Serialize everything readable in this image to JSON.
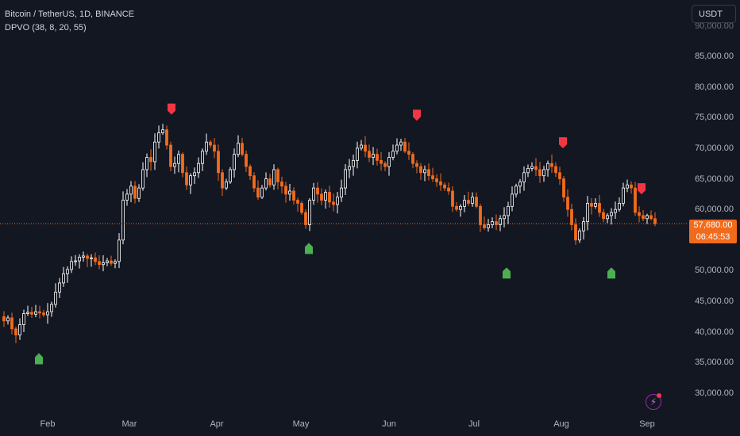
{
  "legend": {
    "symbol": "Bitcoin / TetherUS, 1D, BINANCE",
    "indicator": "DPVO (38, 8, 20, 55)"
  },
  "currency_button": "USDT",
  "price_axis": {
    "ticks": [
      "85,000.00",
      "80,000.00",
      "75,000.00",
      "70,000.00",
      "65,000.00",
      "60,000.00",
      "50,000.00",
      "45,000.00",
      "40,000.00",
      "35,000.00",
      "30,000.00"
    ],
    "top_partial_tick": "90,000.00",
    "bottom_partial_tick": "55,000.00"
  },
  "time_axis": {
    "ticks": [
      "Feb",
      "Mar",
      "Apr",
      "May",
      "Jun",
      "Jul",
      "Aug",
      "Sep"
    ]
  },
  "last_price": {
    "value": "57,680.00",
    "countdown": "06:45:53"
  },
  "colors": {
    "background": "#131722",
    "up_candle": "#ffffff",
    "down_candle": "#f26b1d",
    "sell_signal": "#f23645",
    "buy_signal": "#4caf50",
    "price_line": "#f26b1d"
  },
  "chart_data": {
    "type": "candlestick",
    "symbol": "Bitcoin / TetherUS",
    "interval": "1D",
    "exchange": "BINANCE",
    "x_ticks": [
      "Feb",
      "Mar",
      "Apr",
      "May",
      "Jun",
      "Jul",
      "Aug",
      "Sep"
    ],
    "y_ticks": [
      30000,
      35000,
      40000,
      45000,
      50000,
      55000,
      60000,
      65000,
      70000,
      75000,
      80000,
      85000,
      90000
    ],
    "ylim": [
      27500,
      93500
    ],
    "approx_closes": [
      [
        0,
        42500
      ],
      [
        5,
        41800
      ],
      [
        10,
        42300
      ],
      [
        15,
        40500
      ],
      [
        20,
        39500
      ],
      [
        25,
        41200
      ],
      [
        30,
        43000
      ],
      [
        35,
        43200
      ],
      [
        40,
        42900
      ],
      [
        45,
        43300
      ],
      [
        50,
        43100
      ],
      [
        55,
        42800
      ],
      [
        60,
        43300
      ],
      [
        65,
        44500
      ],
      [
        70,
        46500
      ],
      [
        75,
        48000
      ],
      [
        80,
        49500
      ],
      [
        85,
        50200
      ],
      [
        90,
        51500
      ],
      [
        95,
        51600
      ],
      [
        100,
        52200
      ],
      [
        105,
        52400
      ],
      [
        110,
        52000
      ],
      [
        115,
        52100
      ],
      [
        120,
        51500
      ],
      [
        125,
        51000
      ],
      [
        130,
        51300
      ],
      [
        135,
        51600
      ],
      [
        140,
        51200
      ],
      [
        145,
        51500
      ],
      [
        150,
        55000
      ],
      [
        155,
        61500
      ],
      [
        160,
        62500
      ],
      [
        165,
        63800
      ],
      [
        170,
        61800
      ],
      [
        175,
        63500
      ],
      [
        180,
        66500
      ],
      [
        185,
        68500
      ],
      [
        190,
        67800
      ],
      [
        195,
        71000
      ],
      [
        200,
        72500
      ],
      [
        205,
        73000
      ],
      [
        210,
        70500
      ],
      [
        215,
        67000
      ],
      [
        220,
        67500
      ],
      [
        225,
        69000
      ],
      [
        230,
        66000
      ],
      [
        235,
        64000
      ],
      [
        240,
        65500
      ],
      [
        245,
        66000
      ],
      [
        250,
        67500
      ],
      [
        255,
        69500
      ],
      [
        260,
        71000
      ],
      [
        265,
        70500
      ],
      [
        270,
        69500
      ],
      [
        275,
        66000
      ],
      [
        280,
        63500
      ],
      [
        285,
        64500
      ],
      [
        290,
        66500
      ],
      [
        295,
        69000
      ],
      [
        300,
        70800
      ],
      [
        305,
        69000
      ],
      [
        310,
        67000
      ],
      [
        315,
        65500
      ],
      [
        320,
        63500
      ],
      [
        325,
        62000
      ],
      [
        330,
        63500
      ],
      [
        335,
        65000
      ],
      [
        340,
        64000
      ],
      [
        345,
        66500
      ],
      [
        350,
        64500
      ],
      [
        355,
        63800
      ],
      [
        360,
        62500
      ],
      [
        365,
        63000
      ],
      [
        370,
        61500
      ],
      [
        375,
        61000
      ],
      [
        380,
        59500
      ],
      [
        385,
        57500
      ],
      [
        390,
        61500
      ],
      [
        395,
        63500
      ],
      [
        400,
        62500
      ],
      [
        405,
        61500
      ],
      [
        410,
        62800
      ],
      [
        415,
        61200
      ],
      [
        420,
        60800
      ],
      [
        425,
        62000
      ],
      [
        430,
        63500
      ],
      [
        435,
        66500
      ],
      [
        440,
        67000
      ],
      [
        445,
        68000
      ],
      [
        450,
        70000
      ],
      [
        455,
        70500
      ],
      [
        460,
        69500
      ],
      [
        465,
        68500
      ],
      [
        470,
        69000
      ],
      [
        475,
        68000
      ],
      [
        480,
        67500
      ],
      [
        485,
        67000
      ],
      [
        490,
        68500
      ],
      [
        495,
        69500
      ],
      [
        500,
        70500
      ],
      [
        505,
        71000
      ],
      [
        510,
        69500
      ],
      [
        515,
        69000
      ],
      [
        520,
        67500
      ],
      [
        525,
        67000
      ],
      [
        530,
        66000
      ],
      [
        535,
        66500
      ],
      [
        540,
        65500
      ],
      [
        545,
        65000
      ],
      [
        550,
        64500
      ],
      [
        555,
        64000
      ],
      [
        560,
        63500
      ],
      [
        565,
        63000
      ],
      [
        570,
        60500
      ],
      [
        575,
        60000
      ],
      [
        580,
        60500
      ],
      [
        585,
        61500
      ],
      [
        590,
        61000
      ],
      [
        595,
        62000
      ],
      [
        600,
        60500
      ],
      [
        605,
        57500
      ],
      [
        610,
        57000
      ],
      [
        615,
        57500
      ],
      [
        620,
        58000
      ],
      [
        625,
        57500
      ],
      [
        630,
        58500
      ],
      [
        635,
        59000
      ],
      [
        640,
        60500
      ],
      [
        645,
        62500
      ],
      [
        650,
        63800
      ],
      [
        655,
        64500
      ],
      [
        660,
        66000
      ],
      [
        665,
        66700
      ],
      [
        670,
        67000
      ],
      [
        675,
        66500
      ],
      [
        680,
        65500
      ],
      [
        685,
        66500
      ],
      [
        690,
        67500
      ],
      [
        695,
        67000
      ],
      [
        700,
        66000
      ],
      [
        705,
        65000
      ],
      [
        710,
        62000
      ],
      [
        715,
        60000
      ],
      [
        720,
        57500
      ],
      [
        725,
        55000
      ],
      [
        730,
        56500
      ],
      [
        735,
        58000
      ],
      [
        740,
        61000
      ],
      [
        745,
        60500
      ],
      [
        750,
        61000
      ],
      [
        755,
        59500
      ],
      [
        760,
        58500
      ],
      [
        765,
        59000
      ],
      [
        770,
        59500
      ],
      [
        775,
        60000
      ],
      [
        780,
        61000
      ],
      [
        785,
        63500
      ],
      [
        790,
        64000
      ],
      [
        795,
        63500
      ],
      [
        800,
        59500
      ],
      [
        805,
        59000
      ],
      [
        810,
        58500
      ],
      [
        815,
        59000
      ],
      [
        820,
        58500
      ],
      [
        825,
        57680
      ]
    ],
    "markers": [
      {
        "type": "buy",
        "x": 49,
        "price": 35500
      },
      {
        "type": "sell",
        "x": 216,
        "price": 76500
      },
      {
        "type": "buy",
        "x": 389,
        "price": 53500
      },
      {
        "type": "sell",
        "x": 525,
        "price": 75500
      },
      {
        "type": "buy",
        "x": 638,
        "price": 49500
      },
      {
        "type": "sell",
        "x": 709,
        "price": 71000
      },
      {
        "type": "buy",
        "x": 770,
        "price": 49500
      },
      {
        "type": "sell",
        "x": 808,
        "price": 63500
      }
    ],
    "last_price": 57680
  }
}
